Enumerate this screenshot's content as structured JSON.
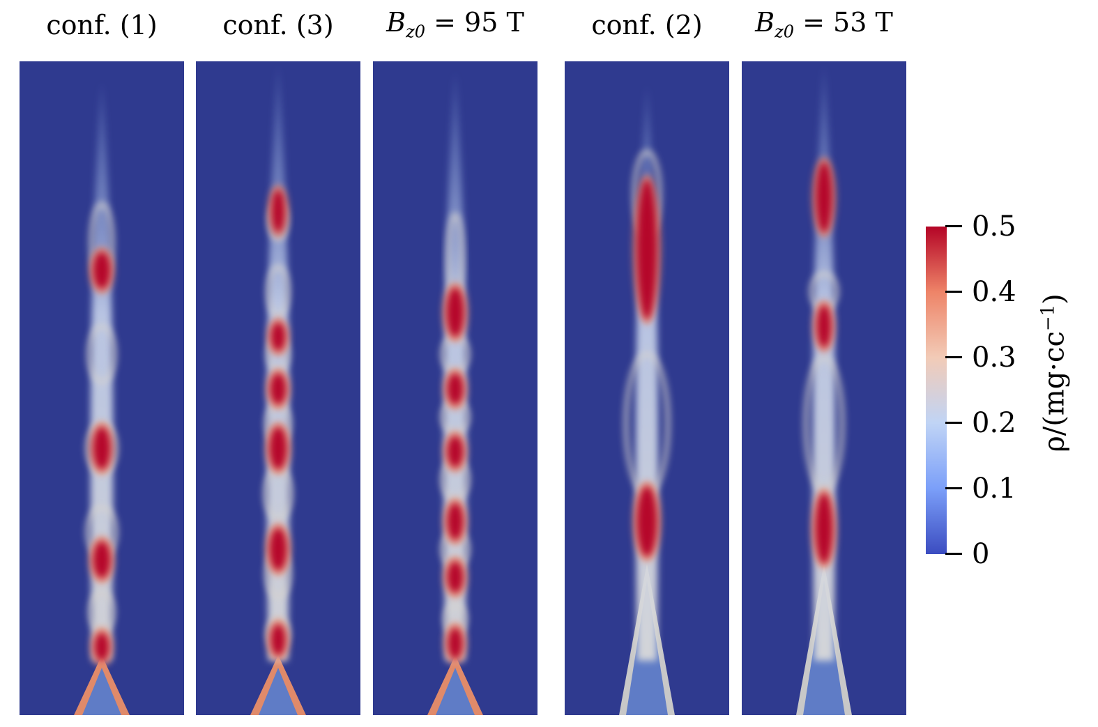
{
  "panels": [
    {
      "title": "conf. (1)",
      "profile": "c1"
    },
    {
      "title": "conf. (3)",
      "profile": "c3"
    },
    {
      "title_sym": "B",
      "title_sub": "z0",
      "title_rest": " = 95 T",
      "profile": "b95"
    },
    {
      "title": "conf. (2)",
      "profile": "c2"
    },
    {
      "title_sym": "B",
      "title_sub": "z0",
      "title_rest": " = 53 T",
      "profile": "b53"
    }
  ],
  "colorbar": {
    "label_main": "ρ/(mg·cc",
    "label_exp": "−1",
    "label_close": ")",
    "ticks": [
      "0",
      "0.1",
      "0.2",
      "0.3",
      "0.4",
      "0.5"
    ],
    "min": 0,
    "max": 0.5
  },
  "colors": {
    "background": "#2f3a8f",
    "low": "#3b4cc0",
    "mid": "#dddddd",
    "high": "#b40426",
    "base_cone": "#5f7cc6"
  }
}
